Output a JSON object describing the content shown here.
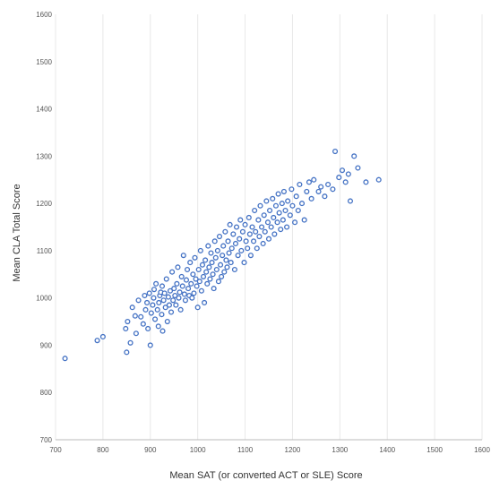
{
  "chart_data": {
    "type": "scatter",
    "title": "",
    "xlabel": "Mean SAT (or converted ACT or SLE) Score",
    "ylabel": "Mean CLA Total Score",
    "xlim": [
      700,
      1600
    ],
    "ylim": [
      700,
      1600
    ],
    "x_ticks": [
      "700",
      "800",
      "900",
      "1000",
      "1100",
      "1200",
      "1300",
      "1400",
      "1500",
      "1600"
    ],
    "y_ticks": [
      "700",
      "800",
      "900",
      "1000",
      "1100",
      "1200",
      "1300",
      "1400",
      "1500",
      "1600"
    ],
    "grid": "vertical",
    "legend": "none",
    "marker_color": "#4472c4",
    "grid_color": "#e8e8e8",
    "points": [
      [
        720,
        872
      ],
      [
        788,
        910
      ],
      [
        800,
        918
      ],
      [
        848,
        935
      ],
      [
        850,
        885
      ],
      [
        852,
        950
      ],
      [
        858,
        905
      ],
      [
        862,
        980
      ],
      [
        868,
        962
      ],
      [
        870,
        925
      ],
      [
        875,
        995
      ],
      [
        880,
        960
      ],
      [
        885,
        945
      ],
      [
        888,
        1005
      ],
      [
        890,
        975
      ],
      [
        893,
        990
      ],
      [
        895,
        935
      ],
      [
        898,
        1010
      ],
      [
        900,
        900
      ],
      [
        902,
        968
      ],
      [
        905,
        985
      ],
      [
        907,
        1000
      ],
      [
        908,
        1018
      ],
      [
        910,
        955
      ],
      [
        912,
        1030
      ],
      [
        915,
        975
      ],
      [
        917,
        940
      ],
      [
        918,
        990
      ],
      [
        920,
        1005
      ],
      [
        922,
        1012
      ],
      [
        924,
        965
      ],
      [
        925,
        1025
      ],
      [
        926,
        930
      ],
      [
        928,
        995
      ],
      [
        930,
        1010
      ],
      [
        932,
        980
      ],
      [
        934,
        1040
      ],
      [
        936,
        950
      ],
      [
        938,
        1002
      ],
      [
        940,
        985
      ],
      [
        942,
        1015
      ],
      [
        944,
        970
      ],
      [
        946,
        1055
      ],
      [
        948,
        995
      ],
      [
        950,
        1020
      ],
      [
        952,
        1005
      ],
      [
        954,
        985
      ],
      [
        956,
        1030
      ],
      [
        958,
        1065
      ],
      [
        960,
        1000
      ],
      [
        962,
        1012
      ],
      [
        964,
        975
      ],
      [
        966,
        1045
      ],
      [
        968,
        1025
      ],
      [
        970,
        1090
      ],
      [
        972,
        1008
      ],
      [
        974,
        995
      ],
      [
        976,
        1038
      ],
      [
        978,
        1060
      ],
      [
        980,
        1020
      ],
      [
        982,
        1005
      ],
      [
        984,
        1075
      ],
      [
        986,
        1030
      ],
      [
        988,
        1000
      ],
      [
        990,
        1050
      ],
      [
        992,
        1010
      ],
      [
        994,
        1085
      ],
      [
        996,
        1040
      ],
      [
        998,
        1025
      ],
      [
        1000,
        980
      ],
      [
        1002,
        1060
      ],
      [
        1004,
        1035
      ],
      [
        1006,
        1100
      ],
      [
        1008,
        1015
      ],
      [
        1010,
        1070
      ],
      [
        1012,
        1045
      ],
      [
        1014,
        990
      ],
      [
        1016,
        1080
      ],
      [
        1018,
        1055
      ],
      [
        1020,
        1030
      ],
      [
        1022,
        1110
      ],
      [
        1024,
        1065
      ],
      [
        1026,
        1040
      ],
      [
        1028,
        1095
      ],
      [
        1030,
        1075
      ],
      [
        1032,
        1050
      ],
      [
        1034,
        1020
      ],
      [
        1036,
        1120
      ],
      [
        1038,
        1085
      ],
      [
        1040,
        1060
      ],
      [
        1042,
        1100
      ],
      [
        1044,
        1035
      ],
      [
        1046,
        1130
      ],
      [
        1048,
        1070
      ],
      [
        1050,
        1045
      ],
      [
        1052,
        1090
      ],
      [
        1054,
        1110
      ],
      [
        1056,
        1055
      ],
      [
        1058,
        1140
      ],
      [
        1060,
        1080
      ],
      [
        1062,
        1065
      ],
      [
        1064,
        1120
      ],
      [
        1066,
        1095
      ],
      [
        1068,
        1155
      ],
      [
        1070,
        1075
      ],
      [
        1072,
        1105
      ],
      [
        1075,
        1135
      ],
      [
        1078,
        1060
      ],
      [
        1080,
        1115
      ],
      [
        1082,
        1150
      ],
      [
        1085,
        1090
      ],
      [
        1088,
        1125
      ],
      [
        1090,
        1165
      ],
      [
        1092,
        1100
      ],
      [
        1095,
        1140
      ],
      [
        1098,
        1075
      ],
      [
        1100,
        1155
      ],
      [
        1102,
        1120
      ],
      [
        1105,
        1105
      ],
      [
        1108,
        1170
      ],
      [
        1110,
        1135
      ],
      [
        1112,
        1090
      ],
      [
        1115,
        1150
      ],
      [
        1118,
        1120
      ],
      [
        1120,
        1185
      ],
      [
        1122,
        1140
      ],
      [
        1125,
        1105
      ],
      [
        1128,
        1165
      ],
      [
        1130,
        1130
      ],
      [
        1132,
        1195
      ],
      [
        1135,
        1150
      ],
      [
        1138,
        1115
      ],
      [
        1140,
        1175
      ],
      [
        1142,
        1140
      ],
      [
        1145,
        1205
      ],
      [
        1148,
        1160
      ],
      [
        1150,
        1125
      ],
      [
        1152,
        1185
      ],
      [
        1155,
        1150
      ],
      [
        1158,
        1210
      ],
      [
        1160,
        1170
      ],
      [
        1162,
        1135
      ],
      [
        1165,
        1195
      ],
      [
        1168,
        1160
      ],
      [
        1170,
        1220
      ],
      [
        1172,
        1180
      ],
      [
        1175,
        1145
      ],
      [
        1178,
        1200
      ],
      [
        1180,
        1165
      ],
      [
        1182,
        1225
      ],
      [
        1185,
        1185
      ],
      [
        1188,
        1150
      ],
      [
        1190,
        1205
      ],
      [
        1195,
        1175
      ],
      [
        1198,
        1230
      ],
      [
        1200,
        1195
      ],
      [
        1205,
        1160
      ],
      [
        1208,
        1215
      ],
      [
        1212,
        1185
      ],
      [
        1215,
        1240
      ],
      [
        1220,
        1200
      ],
      [
        1225,
        1165
      ],
      [
        1230,
        1225
      ],
      [
        1235,
        1245
      ],
      [
        1240,
        1210
      ],
      [
        1245,
        1250
      ],
      [
        1255,
        1225
      ],
      [
        1260,
        1235
      ],
      [
        1268,
        1215
      ],
      [
        1275,
        1240
      ],
      [
        1285,
        1230
      ],
      [
        1290,
        1310
      ],
      [
        1298,
        1255
      ],
      [
        1305,
        1270
      ],
      [
        1312,
        1245
      ],
      [
        1318,
        1262
      ],
      [
        1322,
        1205
      ],
      [
        1330,
        1300
      ],
      [
        1338,
        1275
      ],
      [
        1355,
        1245
      ],
      [
        1382,
        1250
      ]
    ]
  }
}
